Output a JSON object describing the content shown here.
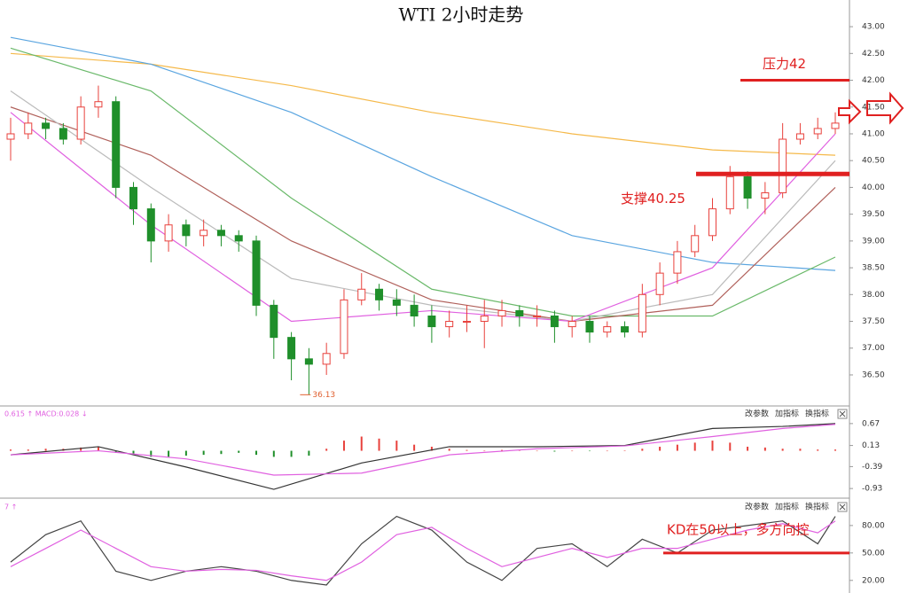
{
  "chart_data": [
    {
      "type": "candlestick",
      "title": "WTI 2小时走势",
      "up_color": "#e8413c",
      "down_color": "#1f8f2a",
      "open": [
        40.9,
        41.0,
        41.2,
        41.1,
        40.9,
        41.5,
        41.6,
        40.0,
        39.6,
        39.0,
        39.3,
        39.1,
        39.2,
        39.1,
        39.0,
        37.8,
        37.2,
        36.8,
        36.7,
        36.9,
        37.9,
        38.1,
        37.9,
        37.8,
        37.6,
        37.4,
        37.5,
        37.5,
        37.6,
        37.7,
        37.6,
        37.6,
        37.4,
        37.5,
        37.3,
        37.4,
        37.3,
        38.0,
        38.4,
        38.8,
        39.1,
        39.6,
        40.2,
        39.8,
        39.9,
        40.9,
        41.0,
        41.1
      ],
      "high": [
        41.3,
        41.4,
        41.3,
        41.2,
        41.7,
        41.9,
        41.7,
        40.1,
        39.7,
        39.5,
        39.4,
        39.4,
        39.3,
        39.2,
        39.1,
        37.9,
        37.3,
        37.0,
        37.1,
        38.1,
        38.4,
        38.2,
        38.1,
        38.0,
        37.8,
        37.7,
        37.8,
        37.9,
        37.9,
        37.8,
        37.8,
        37.7,
        37.6,
        37.6,
        37.5,
        37.5,
        38.2,
        38.6,
        39.0,
        39.3,
        39.8,
        40.4,
        40.3,
        40.1,
        41.2,
        41.2,
        41.3,
        41.4
      ],
      "low": [
        40.5,
        40.9,
        40.9,
        40.8,
        40.8,
        41.3,
        39.8,
        39.3,
        38.6,
        38.8,
        38.9,
        38.9,
        38.9,
        38.8,
        37.6,
        36.8,
        36.4,
        36.13,
        36.5,
        36.8,
        37.8,
        37.7,
        37.6,
        37.4,
        37.1,
        37.2,
        37.3,
        37.0,
        37.4,
        37.4,
        37.4,
        37.1,
        37.2,
        37.1,
        37.2,
        37.2,
        37.2,
        37.8,
        38.2,
        38.7,
        39.0,
        39.5,
        39.6,
        39.5,
        39.8,
        40.8,
        40.9,
        41.0
      ],
      "close": [
        41.0,
        41.2,
        41.1,
        40.9,
        41.5,
        41.6,
        40.0,
        39.6,
        39.0,
        39.3,
        39.1,
        39.2,
        39.1,
        39.0,
        37.8,
        37.2,
        36.8,
        36.7,
        36.9,
        37.9,
        38.1,
        37.9,
        37.8,
        37.6,
        37.4,
        37.5,
        37.5,
        37.6,
        37.7,
        37.6,
        37.6,
        37.4,
        37.5,
        37.3,
        37.4,
        37.3,
        38.0,
        38.4,
        38.8,
        39.1,
        39.6,
        40.2,
        39.8,
        39.9,
        40.9,
        41.0,
        41.1,
        41.2
      ],
      "low_label": "36.13",
      "low_index": 17,
      "lines": [
        {
          "color": "#f5b94a",
          "x": [
            0,
            8,
            16,
            24,
            32,
            40,
            47
          ],
          "values": [
            42.5,
            42.3,
            41.9,
            41.4,
            41.0,
            40.7,
            40.6
          ]
        },
        {
          "color": "#5aa5e0",
          "x": [
            0,
            8,
            16,
            24,
            32,
            40,
            47
          ],
          "values": [
            42.8,
            42.3,
            41.4,
            40.2,
            39.1,
            38.6,
            38.45
          ]
        },
        {
          "color": "#6ab96a",
          "x": [
            0,
            8,
            16,
            24,
            32,
            40,
            47
          ],
          "values": [
            42.6,
            41.8,
            39.8,
            38.1,
            37.6,
            37.6,
            38.7
          ]
        },
        {
          "color": "#b0605a",
          "x": [
            0,
            8,
            16,
            24,
            32,
            40,
            47
          ],
          "values": [
            41.5,
            40.6,
            39.0,
            37.9,
            37.5,
            37.8,
            40.0
          ]
        },
        {
          "color": "#bbbbbb",
          "x": [
            0,
            8,
            16,
            24,
            32,
            40,
            47
          ],
          "values": [
            41.8,
            40.0,
            38.3,
            37.8,
            37.5,
            38.0,
            40.5
          ]
        },
        {
          "color": "#e060e0",
          "x": [
            0,
            8,
            16,
            24,
            32,
            40,
            47
          ],
          "values": [
            41.4,
            39.3,
            37.5,
            37.7,
            37.5,
            38.5,
            41.0
          ]
        }
      ],
      "annotations": [
        {
          "text": "压力42",
          "value": 42
        },
        {
          "text": "支撑40.25",
          "value": 40.25
        }
      ],
      "ylim": [
        35.97,
        43.2
      ],
      "yticks": [
        {
          "value": 36.5,
          "label": "36.50"
        },
        {
          "value": 37,
          "label": "37.00"
        },
        {
          "value": 37.5,
          "label": "37.50"
        },
        {
          "value": 38,
          "label": "38.00"
        },
        {
          "value": 38.5,
          "label": "38.50"
        },
        {
          "value": 39,
          "label": "39.00"
        },
        {
          "value": 39.5,
          "label": "39.50"
        },
        {
          "value": 40,
          "label": "40.00"
        },
        {
          "value": 40.5,
          "label": "40.50"
        },
        {
          "value": 41,
          "label": "41.00"
        },
        {
          "value": 41.5,
          "label": "41.50"
        },
        {
          "value": 42,
          "label": "42.00"
        },
        {
          "value": 42.5,
          "label": "42.50"
        },
        {
          "value": 43,
          "label": "43.00"
        }
      ]
    },
    {
      "type": "bar",
      "header": "0.615 ↑ MACD:0.028 ↓",
      "buttons": [
        "改参数",
        "加指标",
        "换指标"
      ],
      "pos_color": "#e8413c",
      "neg_color": "#1f8f2a",
      "values": [
        0.03,
        0.03,
        0.05,
        0.05,
        0.08,
        0.1,
        -0.05,
        -0.1,
        -0.15,
        -0.15,
        -0.12,
        -0.1,
        -0.08,
        -0.05,
        -0.1,
        -0.15,
        -0.15,
        -0.12,
        0.05,
        0.25,
        0.35,
        0.3,
        0.25,
        0.15,
        0.1,
        0.05,
        0.02,
        0.0,
        0.02,
        0.01,
        0.0,
        -0.02,
        0.0,
        -0.01,
        0.0,
        0.01,
        0.05,
        0.1,
        0.15,
        0.2,
        0.25,
        0.2,
        0.1,
        0.08,
        0.05,
        0.05,
        0.03,
        0.03
      ],
      "lines": [
        {
          "color": "#333333",
          "x": [
            0,
            5,
            10,
            15,
            20,
            25,
            30,
            35,
            40,
            44,
            47
          ],
          "values": [
            -0.1,
            0.1,
            -0.4,
            -0.95,
            -0.3,
            0.1,
            0.1,
            0.13,
            0.55,
            0.6,
            0.67
          ]
        },
        {
          "color": "#e060e0",
          "x": [
            0,
            5,
            10,
            15,
            20,
            25,
            30,
            35,
            40,
            44,
            47
          ],
          "values": [
            -0.1,
            0.0,
            -0.2,
            -0.6,
            -0.55,
            -0.1,
            0.05,
            0.12,
            0.35,
            0.55,
            0.65
          ]
        }
      ],
      "ylim": [
        -1.08,
        1.06
      ],
      "yticks": [
        0.67,
        0.13,
        -0.39,
        -0.93
      ]
    },
    {
      "type": "line",
      "header": "7 ↑",
      "buttons": [
        "改参数",
        "加指标",
        "换指标"
      ],
      "x": [
        0,
        2,
        4,
        6,
        8,
        10,
        12,
        14,
        16,
        18,
        20,
        22,
        24,
        26,
        28,
        30,
        32,
        34,
        36,
        38,
        40,
        42,
        44,
        46,
        47
      ],
      "series": [
        {
          "color": "#444444",
          "values": [
            40,
            70,
            85,
            30,
            20,
            30,
            35,
            30,
            20,
            15,
            60,
            90,
            75,
            40,
            20,
            55,
            60,
            35,
            65,
            50,
            75,
            80,
            85,
            60,
            90
          ]
        },
        {
          "color": "#e060e0",
          "values": [
            35,
            55,
            75,
            55,
            35,
            30,
            32,
            31,
            25,
            20,
            40,
            70,
            78,
            55,
            35,
            45,
            55,
            45,
            55,
            55,
            65,
            75,
            82,
            72,
            85
          ]
        }
      ],
      "annotation": {
        "text": "KD在50以上，多方向控",
        "value": 50
      },
      "ylim": [
        13,
        107
      ],
      "yticks": [
        {
          "value": 80,
          "label": "80.00"
        },
        {
          "value": 50,
          "label": "50.00"
        },
        {
          "value": 20,
          "label": "20.00"
        }
      ]
    }
  ]
}
